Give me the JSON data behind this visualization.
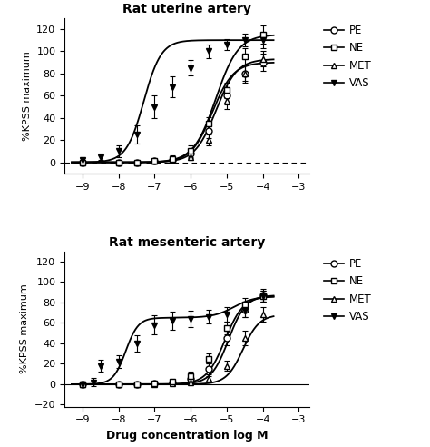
{
  "top_title": "Rat uterine artery",
  "bottom_title": "Rat mesenteric artery",
  "xlabel": "Drug concentration log M",
  "ylabel": "%KPSS maximum",
  "x_ticks": [
    -9,
    -8,
    -7,
    -6,
    -5,
    -4,
    -3
  ],
  "top_data": {
    "PE": {
      "x": [
        -9,
        -8,
        -7.5,
        -7,
        -6.5,
        -6,
        -5.5,
        -5,
        -4.5,
        -4
      ],
      "y": [
        0,
        0,
        0,
        1,
        2,
        8,
        28,
        60,
        80,
        90
      ],
      "yerr": [
        1,
        1,
        1,
        2,
        2,
        4,
        6,
        8,
        8,
        8
      ]
    },
    "NE": {
      "x": [
        -9,
        -8,
        -7.5,
        -7,
        -6.5,
        -6,
        -5.5,
        -5,
        -4.5,
        -4
      ],
      "y": [
        0,
        0,
        0,
        1,
        3,
        10,
        35,
        65,
        95,
        115
      ],
      "yerr": [
        1,
        1,
        1,
        2,
        3,
        5,
        6,
        7,
        8,
        8
      ]
    },
    "MET": {
      "x": [
        -9,
        -8,
        -7.5,
        -7,
        -6.5,
        -6,
        -5.5,
        -5,
        -4.5,
        -4
      ],
      "y": [
        0,
        0,
        0,
        1,
        2,
        5,
        20,
        55,
        80,
        93
      ],
      "yerr": [
        1,
        1,
        1,
        2,
        2,
        3,
        5,
        7,
        7,
        7
      ]
    },
    "VAS": {
      "x": [
        -9,
        -8.5,
        -8,
        -7.5,
        -7,
        -6.5,
        -6,
        -5.5,
        -5,
        -4.5,
        -4
      ],
      "y": [
        2,
        5,
        10,
        25,
        50,
        68,
        85,
        100,
        106,
        110,
        110
      ],
      "yerr": [
        2,
        3,
        5,
        8,
        10,
        9,
        7,
        6,
        5,
        6,
        7
      ]
    }
  },
  "bottom_data": {
    "PE": {
      "x": [
        -9,
        -8,
        -7.5,
        -7,
        -6.5,
        -6,
        -5.5,
        -5,
        -4.5,
        -4
      ],
      "y": [
        0,
        0,
        0,
        1,
        2,
        5,
        15,
        45,
        73,
        87
      ],
      "yerr": [
        1,
        1,
        1,
        2,
        2,
        3,
        5,
        7,
        7,
        6
      ]
    },
    "NE": {
      "x": [
        -9,
        -8,
        -7.5,
        -7,
        -6.5,
        -6,
        -5.5,
        -5,
        -4.5,
        -4
      ],
      "y": [
        0,
        0,
        0,
        1,
        3,
        8,
        25,
        55,
        78,
        86
      ],
      "yerr": [
        1,
        1,
        1,
        2,
        2,
        4,
        5,
        6,
        6,
        5
      ]
    },
    "MET": {
      "x": [
        -9,
        -8,
        -7.5,
        -7,
        -6.5,
        -6,
        -5.5,
        -5,
        -4.5,
        -4
      ],
      "y": [
        0,
        0,
        0,
        0,
        1,
        2,
        5,
        18,
        45,
        68
      ],
      "yerr": [
        1,
        1,
        1,
        1,
        2,
        2,
        3,
        5,
        7,
        7
      ]
    },
    "VAS": {
      "x": [
        -9,
        -8.7,
        -8.5,
        -8,
        -7.5,
        -7,
        -6.5,
        -6,
        -5.5,
        -5,
        -4.5,
        -4
      ],
      "y": [
        0,
        2,
        18,
        22,
        40,
        58,
        62,
        64,
        66,
        68,
        72,
        86
      ],
      "yerr": [
        1,
        4,
        6,
        6,
        8,
        9,
        9,
        8,
        7,
        7,
        6,
        5
      ]
    }
  },
  "top_curves": {
    "PE": {
      "ec50": -5.4,
      "hill": 1.5,
      "emax": 90
    },
    "NE": {
      "ec50": -5.3,
      "hill": 1.4,
      "emax": 115
    },
    "MET": {
      "ec50": -5.3,
      "hill": 1.5,
      "emax": 93
    },
    "VAS": {
      "ec50": -7.3,
      "hill": 1.8,
      "emax": 110
    }
  },
  "bottom_curves": {
    "PE": {
      "ec50": -4.95,
      "hill": 1.8,
      "emax": 87
    },
    "NE": {
      "ec50": -5.05,
      "hill": 1.7,
      "emax": 86
    },
    "MET": {
      "ec50": -4.55,
      "hill": 1.9,
      "emax": 68
    },
    "VAS": {
      "ec50": -7.8,
      "hill": 2.5,
      "emax": 65,
      "plateau": true
    }
  },
  "legend_order": [
    "PE",
    "NE",
    "MET",
    "VAS"
  ]
}
